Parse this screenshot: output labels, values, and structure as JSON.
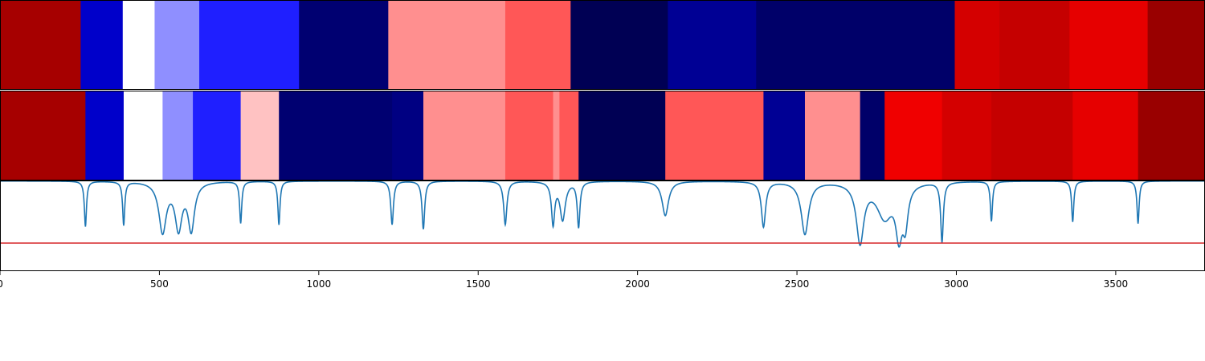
{
  "chart_data": {
    "type": "heatmap",
    "title": "",
    "xlabel": "",
    "ylabel": "",
    "xlim": [
      0,
      3780
    ],
    "x_ticks": [
      0,
      500,
      1000,
      1500,
      2000,
      2500,
      3000,
      3500
    ],
    "x_tick_labels": [
      "0",
      "500",
      "1000",
      "1500",
      "2000",
      "2500",
      "3000",
      "3500"
    ],
    "colormap": "seismic",
    "color_range": [
      -1,
      1
    ],
    "bands": [
      {
        "segments": [
          {
            "start": 0,
            "end": 253,
            "value": 0.85
          },
          {
            "start": 253,
            "end": 385,
            "value": -0.65
          },
          {
            "start": 385,
            "end": 485,
            "value": 0.0
          },
          {
            "start": 485,
            "end": 625,
            "value": -0.22
          },
          {
            "start": 625,
            "end": 938,
            "value": -0.44
          },
          {
            "start": 938,
            "end": 1218,
            "value": -0.9
          },
          {
            "start": 1218,
            "end": 1585,
            "value": 0.22
          },
          {
            "start": 1585,
            "end": 1790,
            "value": 0.33
          },
          {
            "start": 1790,
            "end": 2095,
            "value": -0.98
          },
          {
            "start": 2095,
            "end": 2372,
            "value": -0.8
          },
          {
            "start": 2372,
            "end": 2995,
            "value": -0.92
          },
          {
            "start": 2995,
            "end": 3135,
            "value": 0.67
          },
          {
            "start": 3135,
            "end": 3355,
            "value": 0.73
          },
          {
            "start": 3355,
            "end": 3600,
            "value": 0.6
          },
          {
            "start": 3600,
            "end": 3780,
            "value": 0.9
          }
        ]
      },
      {
        "segments": [
          {
            "start": 0,
            "end": 268,
            "value": 0.85
          },
          {
            "start": 268,
            "end": 388,
            "value": -0.65
          },
          {
            "start": 388,
            "end": 510,
            "value": 0.0
          },
          {
            "start": 510,
            "end": 605,
            "value": -0.22
          },
          {
            "start": 605,
            "end": 755,
            "value": -0.44
          },
          {
            "start": 755,
            "end": 875,
            "value": 0.12
          },
          {
            "start": 875,
            "end": 1230,
            "value": -0.9
          },
          {
            "start": 1230,
            "end": 1328,
            "value": -0.85
          },
          {
            "start": 1328,
            "end": 1585,
            "value": 0.22
          },
          {
            "start": 1585,
            "end": 1735,
            "value": 0.33
          },
          {
            "start": 1735,
            "end": 1755,
            "value": 0.22
          },
          {
            "start": 1755,
            "end": 1815,
            "value": 0.33
          },
          {
            "start": 1815,
            "end": 2087,
            "value": -0.98
          },
          {
            "start": 2087,
            "end": 2395,
            "value": 0.33
          },
          {
            "start": 2395,
            "end": 2525,
            "value": -0.8
          },
          {
            "start": 2525,
            "end": 2698,
            "value": 0.22
          },
          {
            "start": 2698,
            "end": 2775,
            "value": -0.92
          },
          {
            "start": 2775,
            "end": 2955,
            "value": 0.56
          },
          {
            "start": 2955,
            "end": 3110,
            "value": 0.67
          },
          {
            "start": 3110,
            "end": 3365,
            "value": 0.73
          },
          {
            "start": 3365,
            "end": 3570,
            "value": 0.6
          },
          {
            "start": 3570,
            "end": 3780,
            "value": 0.9
          }
        ]
      }
    ],
    "line_panel": {
      "ylim": [
        0,
        1
      ],
      "threshold": 0.31,
      "threshold_color": "#d62728",
      "line_color": "#1f77b4",
      "peaks": [
        {
          "x": 268,
          "depth": 0.5,
          "width": 4
        },
        {
          "x": 388,
          "depth": 0.48,
          "width": 4
        },
        {
          "x": 510,
          "depth": 0.55,
          "width": 14
        },
        {
          "x": 560,
          "depth": 0.5,
          "width": 13
        },
        {
          "x": 600,
          "depth": 0.52,
          "width": 12
        },
        {
          "x": 755,
          "depth": 0.46,
          "width": 4
        },
        {
          "x": 875,
          "depth": 0.48,
          "width": 4
        },
        {
          "x": 1230,
          "depth": 0.48,
          "width": 5
        },
        {
          "x": 1328,
          "depth": 0.53,
          "width": 5
        },
        {
          "x": 1585,
          "depth": 0.48,
          "width": 6
        },
        {
          "x": 1735,
          "depth": 0.46,
          "width": 6
        },
        {
          "x": 1765,
          "depth": 0.42,
          "width": 10
        },
        {
          "x": 1815,
          "depth": 0.5,
          "width": 5
        },
        {
          "x": 2087,
          "depth": 0.38,
          "width": 12
        },
        {
          "x": 2395,
          "depth": 0.5,
          "width": 8
        },
        {
          "x": 2525,
          "depth": 0.58,
          "width": 14
        },
        {
          "x": 2698,
          "depth": 0.65,
          "width": 14
        },
        {
          "x": 2775,
          "depth": 0.38,
          "width": 30
        },
        {
          "x": 2820,
          "depth": 0.52,
          "width": 12
        },
        {
          "x": 2840,
          "depth": 0.4,
          "width": 10
        },
        {
          "x": 2955,
          "depth": 0.66,
          "width": 5
        },
        {
          "x": 3110,
          "depth": 0.44,
          "width": 4
        },
        {
          "x": 3365,
          "depth": 0.45,
          "width": 4
        },
        {
          "x": 3570,
          "depth": 0.47,
          "width": 4
        }
      ]
    }
  }
}
